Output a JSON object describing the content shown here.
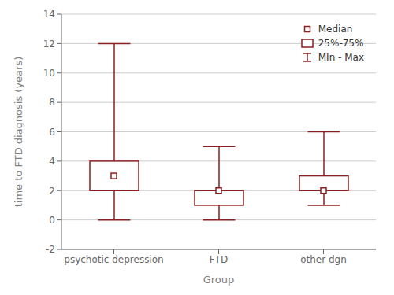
{
  "chart_data": {
    "type": "box",
    "categories": [
      "psychotic depression",
      "FTD",
      "other dgn"
    ],
    "boxes": [
      {
        "min": 0,
        "q1": 2,
        "median": 3,
        "q3": 4,
        "max": 12
      },
      {
        "min": 0,
        "q1": 1,
        "median": 2,
        "q3": 2,
        "max": 5
      },
      {
        "min": 1,
        "q1": 2,
        "median": 2,
        "q3": 3,
        "max": 6
      }
    ],
    "color": "#8B2020",
    "xlabel": "Group",
    "ylabel": "time to FTD diagnosis  (years)",
    "ylim": [
      -2,
      14
    ],
    "yticks": [
      -2,
      0,
      2,
      4,
      6,
      8,
      10,
      12,
      14
    ],
    "grid": true,
    "legend": "upper right",
    "legend_labels": [
      "Median",
      "25%-75%",
      "MIn - Max"
    ]
  }
}
